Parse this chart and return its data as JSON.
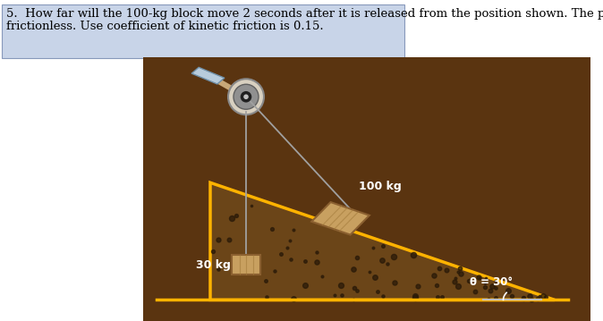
{
  "title_line1": "5.  How far will the 100-kg block move 2 seconds after it is released from the position shown. The pulley is",
  "title_line2": "frictionless. Use coefficient of kinetic friction is 0.15.",
  "title_fontsize": 9.5,
  "bg_color": "#5a3410",
  "ramp_edge": "#FFB300",
  "ramp_fill": "#6b4518",
  "block_100_color": "#C8A060",
  "block_30_color": "#C8A060",
  "rope_color": "#A0A0A0",
  "text_color": "white",
  "angle_text": "θ = 30°",
  "label_100": "100 kg",
  "label_30": "30 kg",
  "figure_bg": "white",
  "highlight_bg": "#C8D4E8",
  "highlight_edge": "#8899BB"
}
